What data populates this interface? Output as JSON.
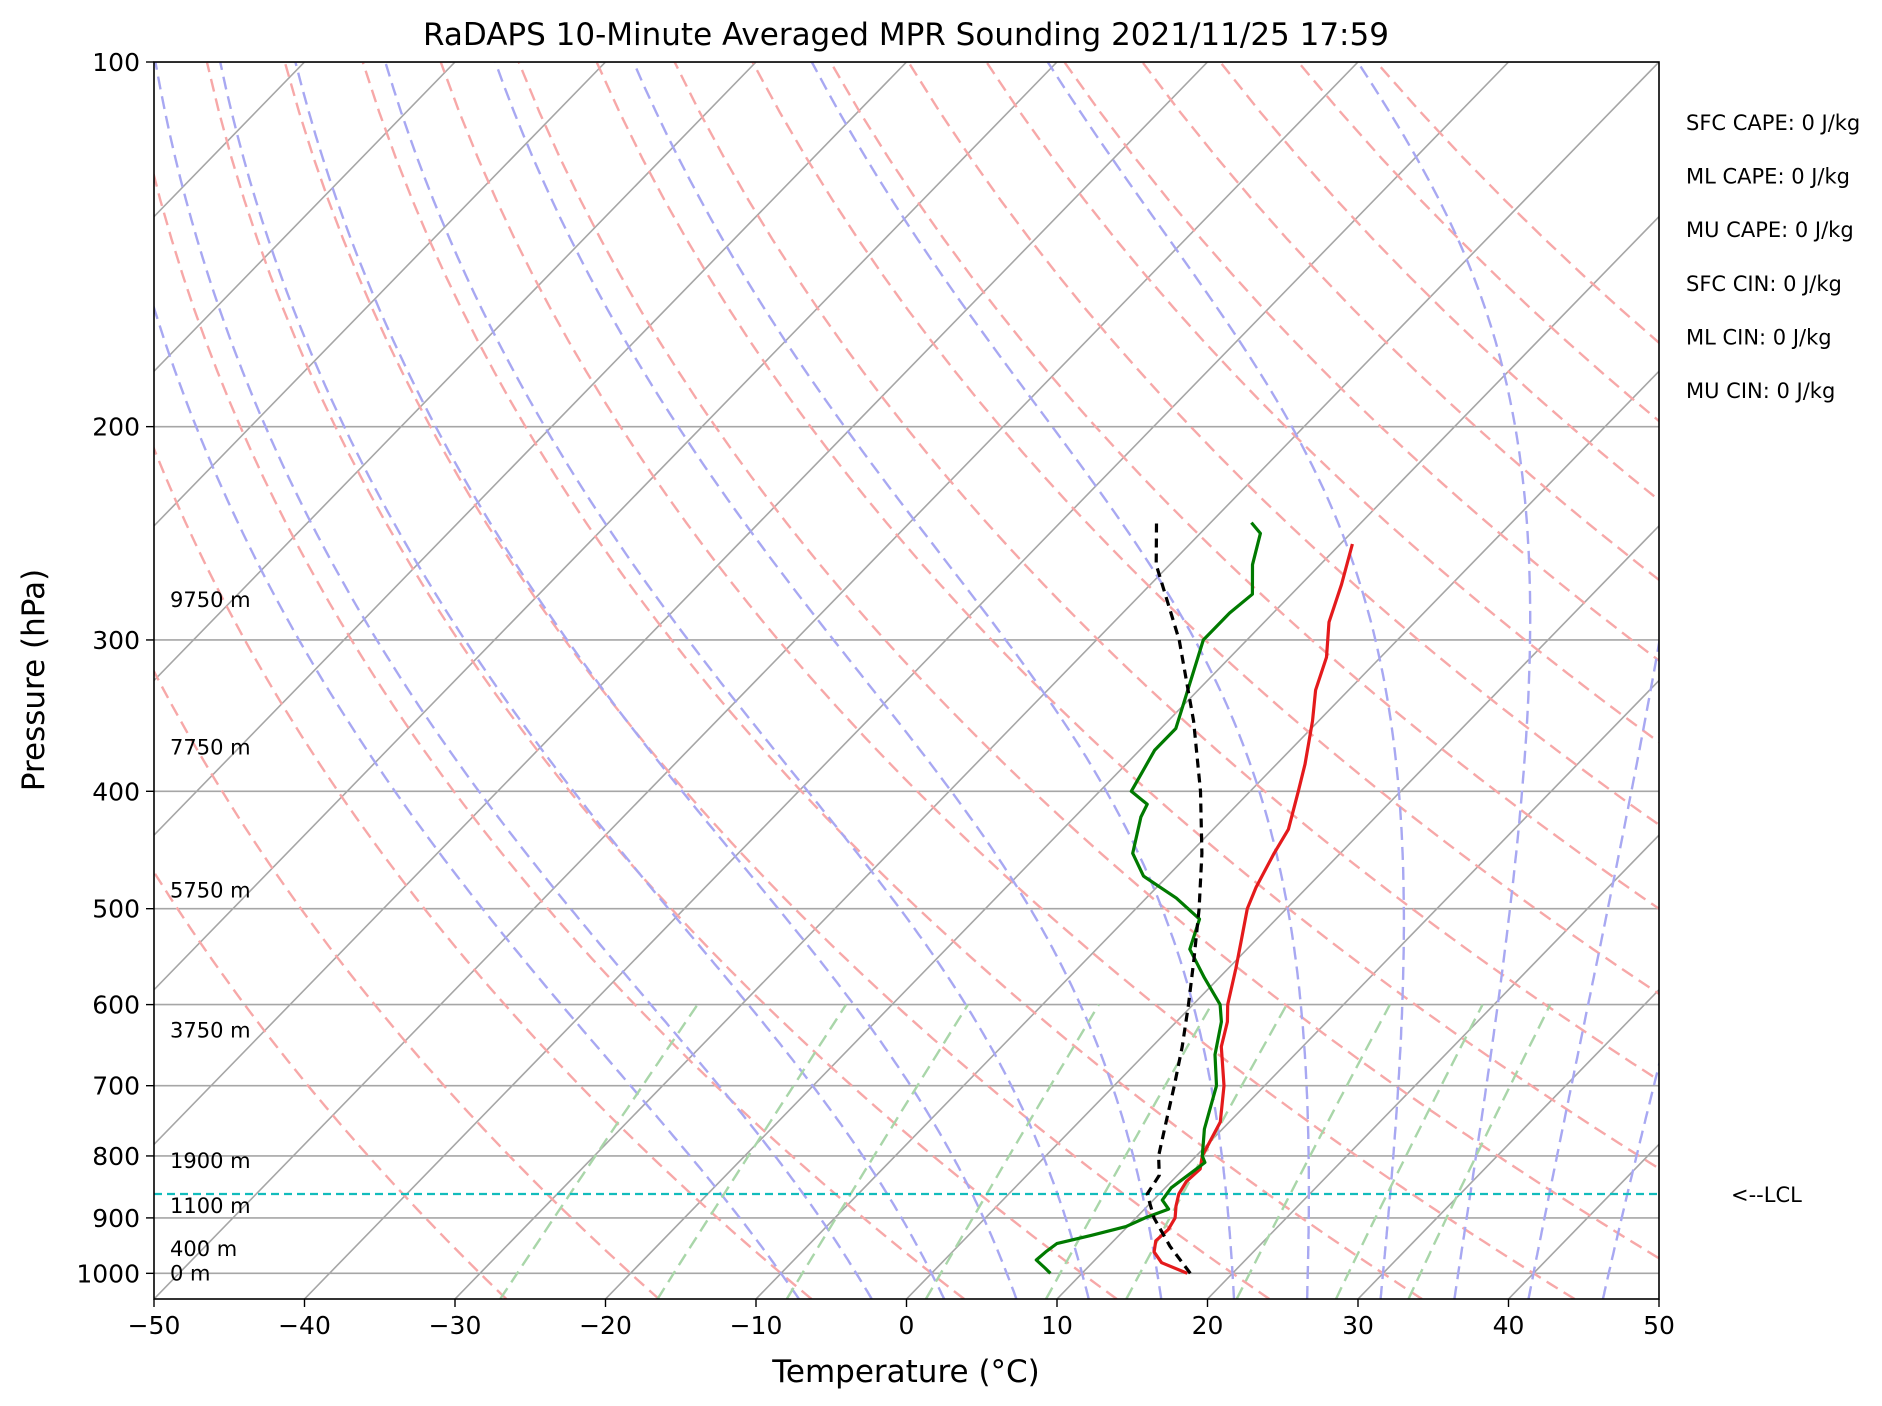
{
  "chart_data": {
    "type": "skew-t",
    "title": "RaDAPS 10-Minute Averaged MPR Sounding 2021/11/25 17:59",
    "xlabel": "Temperature (°C)",
    "ylabel": "Pressure (hPa)",
    "xlim": [
      -50,
      50
    ],
    "ylim": [
      1050,
      100
    ],
    "y_scale": "log",
    "grid": true,
    "x_ticks": [
      -50,
      -40,
      -30,
      -20,
      -10,
      0,
      10,
      20,
      30,
      40,
      50
    ],
    "x_tick_labels": [
      "−50",
      "−40",
      "−30",
      "−20",
      "−10",
      "0",
      "10",
      "20",
      "30",
      "40",
      "50"
    ],
    "y_ticks": [
      100,
      200,
      300,
      400,
      500,
      600,
      700,
      800,
      900,
      1000
    ],
    "y_tick_labels": [
      "100",
      "200",
      "300",
      "400",
      "500",
      "600",
      "700",
      "800",
      "900",
      "1000"
    ],
    "series": [
      {
        "color": "#e41a1c",
        "points": [
          [
            1000,
            17.0
          ],
          [
            980,
            14.6
          ],
          [
            960,
            13.4
          ],
          [
            940,
            12.8
          ],
          [
            920,
            12.9
          ],
          [
            900,
            12.6
          ],
          [
            880,
            11.9
          ],
          [
            860,
            11.3
          ],
          [
            840,
            11.0
          ],
          [
            820,
            11.1
          ],
          [
            800,
            10.4
          ],
          [
            750,
            9.4
          ],
          [
            700,
            7.3
          ],
          [
            650,
            4.6
          ],
          [
            620,
            3.4
          ],
          [
            600,
            2.3
          ],
          [
            560,
            0.5
          ],
          [
            530,
            -1.0
          ],
          [
            500,
            -2.6
          ],
          [
            480,
            -3.4
          ],
          [
            450,
            -4.4
          ],
          [
            430,
            -5.0
          ],
          [
            400,
            -6.8
          ],
          [
            380,
            -8.1
          ],
          [
            350,
            -10.4
          ],
          [
            330,
            -12.2
          ],
          [
            310,
            -13.6
          ],
          [
            290,
            -15.7
          ],
          [
            270,
            -17.3
          ],
          [
            250,
            -19.2
          ]
        ]
      },
      {
        "color": "#007a00",
        "points": [
          [
            1000,
            7.9
          ],
          [
            990,
            7.2
          ],
          [
            975,
            6.1
          ],
          [
            960,
            6.2
          ],
          [
            945,
            6.4
          ],
          [
            930,
            8.2
          ],
          [
            915,
            9.9
          ],
          [
            900,
            10.6
          ],
          [
            885,
            11.6
          ],
          [
            870,
            10.6
          ],
          [
            850,
            10.4
          ],
          [
            830,
            10.7
          ],
          [
            810,
            11.0
          ],
          [
            800,
            10.4
          ],
          [
            760,
            8.8
          ],
          [
            700,
            6.8
          ],
          [
            660,
            4.7
          ],
          [
            620,
            3.0
          ],
          [
            600,
            1.8
          ],
          [
            570,
            -1.0
          ],
          [
            540,
            -3.8
          ],
          [
            510,
            -5.1
          ],
          [
            490,
            -8.0
          ],
          [
            470,
            -11.6
          ],
          [
            450,
            -13.8
          ],
          [
            420,
            -15.6
          ],
          [
            410,
            -16.0
          ],
          [
            400,
            -17.9
          ],
          [
            370,
            -19.0
          ],
          [
            355,
            -19.0
          ],
          [
            340,
            -20.0
          ],
          [
            320,
            -21.4
          ],
          [
            300,
            -22.9
          ],
          [
            285,
            -22.9
          ],
          [
            275,
            -22.6
          ],
          [
            260,
            -24.5
          ],
          [
            245,
            -26.0
          ],
          [
            240,
            -27.3
          ]
        ]
      },
      {
        "color": "#000000",
        "dashed": true,
        "points": [
          [
            1000,
            17.2
          ],
          [
            950,
            14.1
          ],
          [
            900,
            11.2
          ],
          [
            860,
            9.2
          ],
          [
            830,
            8.8
          ],
          [
            800,
            7.5
          ],
          [
            750,
            5.8
          ],
          [
            700,
            4.0
          ],
          [
            650,
            2.0
          ],
          [
            600,
            -0.3
          ],
          [
            550,
            -2.9
          ],
          [
            500,
            -5.8
          ],
          [
            450,
            -9.2
          ],
          [
            400,
            -13.3
          ],
          [
            350,
            -18.3
          ],
          [
            300,
            -24.5
          ],
          [
            260,
            -30.9
          ],
          [
            240,
            -33.6
          ]
        ]
      }
    ],
    "lcl": {
      "pressure": 860,
      "label": "<--LCL"
    },
    "height_labels": [
      {
        "pressure": 1000,
        "text": "0 m"
      },
      {
        "pressure": 955,
        "text": "400 m"
      },
      {
        "pressure": 880,
        "text": "1100 m"
      },
      {
        "pressure": 808,
        "text": "1900 m"
      },
      {
        "pressure": 630,
        "text": "3750 m"
      },
      {
        "pressure": 483,
        "text": "5750 m"
      },
      {
        "pressure": 368,
        "text": "7750 m"
      },
      {
        "pressure": 278,
        "text": "9750 m"
      }
    ],
    "annotations": [
      "SFC CAPE: 0 J/kg",
      "ML CAPE: 0 J/kg",
      "MU CAPE: 0 J/kg",
      "SFC CIN: 0 J/kg",
      "ML CIN: 0 J/kg",
      "MU CIN: 0 J/kg"
    ],
    "dry_adiabats_theta_c": [
      -30,
      -20,
      -10,
      0,
      10,
      20,
      30,
      40,
      50,
      60,
      70,
      80,
      90,
      100,
      110,
      120,
      130,
      140,
      150,
      160
    ],
    "moist_adiabats_c": [
      -10,
      -5,
      0,
      5,
      10,
      15,
      20,
      25,
      30,
      35,
      40,
      45
    ],
    "mixing_ratio_lines_gkg": [
      0.4,
      1,
      2,
      4,
      7,
      10,
      16,
      24,
      32
    ],
    "colors": {
      "background": "#ffffff",
      "isotherm": "#a6a6a6",
      "isobar": "#a6a6a6",
      "dry_adiabat": "#f7a8a8",
      "moist_adiabat": "#a8a8f2",
      "mixing_ratio": "#a9d6a9",
      "lcl": "#12bcbc"
    }
  }
}
